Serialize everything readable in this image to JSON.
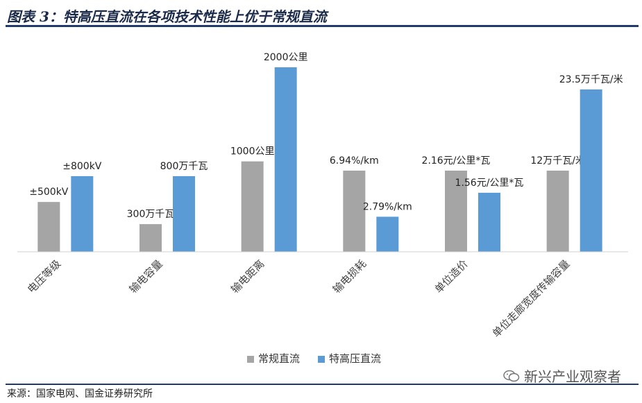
{
  "header": {
    "title": "图表 3：特高压直流在各项技术性能上优于常规直流"
  },
  "footer": {
    "source": "来源：国家电网、国金证券研究所",
    "watermark": "新兴产业观察者"
  },
  "colors": {
    "series1": "#a5a5a5",
    "series2": "#5b9bd5",
    "title": "#1b2a49",
    "rule": "#1f3a6b"
  },
  "chart_data": {
    "type": "bar",
    "categories": [
      "电压等级",
      "输电容量",
      "输电距离",
      "输电损耗",
      "单位造价",
      "单位走廊宽度传输容量"
    ],
    "series": [
      {
        "name": "常规直流",
        "labels": [
          "±500kV",
          "300万千瓦",
          "1000公里",
          "6.94%/km",
          "2.16元/公里*瓦",
          "12万千瓦/米"
        ],
        "relative_heights": [
          0.27,
          0.15,
          0.49,
          0.44,
          0.44,
          0.44
        ]
      },
      {
        "name": "特高压直流",
        "labels": [
          "±800kV",
          "800万千瓦",
          "2000公里",
          "2.79%/km",
          "1.56元/公里*瓦",
          "23.5万千瓦/米"
        ],
        "relative_heights": [
          0.41,
          0.41,
          1.0,
          0.19,
          0.32,
          0.88
        ]
      }
    ],
    "legend_position": "bottom",
    "grid": false,
    "value_axis_visible": false
  }
}
